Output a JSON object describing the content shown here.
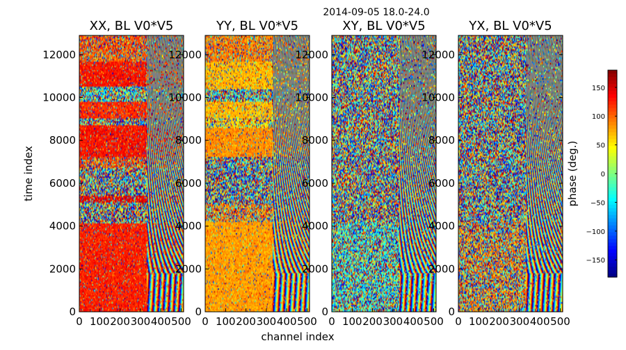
{
  "chart_data": {
    "type": "heatmap",
    "suptitle": "2014-09-05 18.0-24.0",
    "xlabel": "channel index",
    "ylabel": "time index",
    "xlim": [
      0,
      512
    ],
    "ylim": [
      0,
      12900
    ],
    "xticks": [
      "0",
      "100",
      "200",
      "300",
      "400",
      "500"
    ],
    "xtick_values": [
      0,
      100,
      200,
      300,
      400,
      500
    ],
    "yticks": [
      "0",
      "2000",
      "4000",
      "6000",
      "8000",
      "10000",
      "12000"
    ],
    "ytick_values": [
      0,
      2000,
      4000,
      6000,
      8000,
      10000,
      12000
    ],
    "colormap": "jet",
    "panels": [
      {
        "title": "XX, BL V0*V5",
        "base_phase": 120,
        "bands": [
          {
            "t0": 0,
            "t1": 4150,
            "phase": 125,
            "noise": 0.12
          },
          {
            "t0": 4150,
            "t1": 5100,
            "phase": 0,
            "noise": 1.0
          },
          {
            "t0": 5100,
            "t1": 5400,
            "phase": 140,
            "noise": 0.3
          },
          {
            "t0": 5400,
            "t1": 6700,
            "phase": 0,
            "noise": 1.0
          },
          {
            "t0": 6700,
            "t1": 7200,
            "phase": 110,
            "noise": 0.5
          },
          {
            "t0": 7200,
            "t1": 8700,
            "phase": 130,
            "noise": 0.12
          },
          {
            "t0": 8700,
            "t1": 9000,
            "phase": 0,
            "noise": 1.0
          },
          {
            "t0": 9000,
            "t1": 9800,
            "phase": 120,
            "noise": 0.15
          },
          {
            "t0": 9800,
            "t1": 10500,
            "phase": -30,
            "noise": 0.85
          },
          {
            "t0": 10500,
            "t1": 11700,
            "phase": 130,
            "noise": 0.12
          },
          {
            "t0": 11700,
            "t1": 12200,
            "phase": 100,
            "noise": 0.4
          },
          {
            "t0": 12200,
            "t1": 12900,
            "phase": 110,
            "noise": 0.45
          }
        ]
      },
      {
        "title": "YY, BL V0*V5",
        "base_phase": 75,
        "bands": [
          {
            "t0": 0,
            "t1": 4200,
            "phase": 80,
            "noise": 0.1
          },
          {
            "t0": 4200,
            "t1": 5000,
            "phase": 90,
            "noise": 0.6
          },
          {
            "t0": 5000,
            "t1": 6600,
            "phase": 0,
            "noise": 1.0
          },
          {
            "t0": 6600,
            "t1": 7200,
            "phase": 0,
            "noise": 1.0
          },
          {
            "t0": 7200,
            "t1": 8600,
            "phase": 85,
            "noise": 0.15
          },
          {
            "t0": 8600,
            "t1": 9000,
            "phase": 60,
            "noise": 0.5
          },
          {
            "t0": 9000,
            "t1": 9800,
            "phase": 70,
            "noise": 0.2
          },
          {
            "t0": 9800,
            "t1": 10400,
            "phase": -20,
            "noise": 0.85
          },
          {
            "t0": 10400,
            "t1": 11700,
            "phase": 70,
            "noise": 0.2
          },
          {
            "t0": 11700,
            "t1": 12900,
            "phase": 90,
            "noise": 0.35
          }
        ]
      },
      {
        "title": "XY, BL V0*V5",
        "base_phase": 0,
        "bands": [
          {
            "t0": 0,
            "t1": 4200,
            "phase": -30,
            "noise": 0.75
          },
          {
            "t0": 4200,
            "t1": 12900,
            "phase": 0,
            "noise": 1.0
          }
        ]
      },
      {
        "title": "YX, BL V0*V5",
        "base_phase": 0,
        "bands": [
          {
            "t0": 0,
            "t1": 4200,
            "phase": 90,
            "noise": 0.75
          },
          {
            "t0": 4200,
            "t1": 12900,
            "phase": 0,
            "noise": 1.0
          }
        ]
      }
    ],
    "colorbar": {
      "label": "phase (deg.)",
      "range": [
        -180,
        180
      ],
      "ticks": [
        "150",
        "100",
        "50",
        "0",
        "−50",
        "−100",
        "−150"
      ],
      "tick_values": [
        150,
        100,
        50,
        0,
        -50,
        -100,
        -150
      ]
    }
  }
}
